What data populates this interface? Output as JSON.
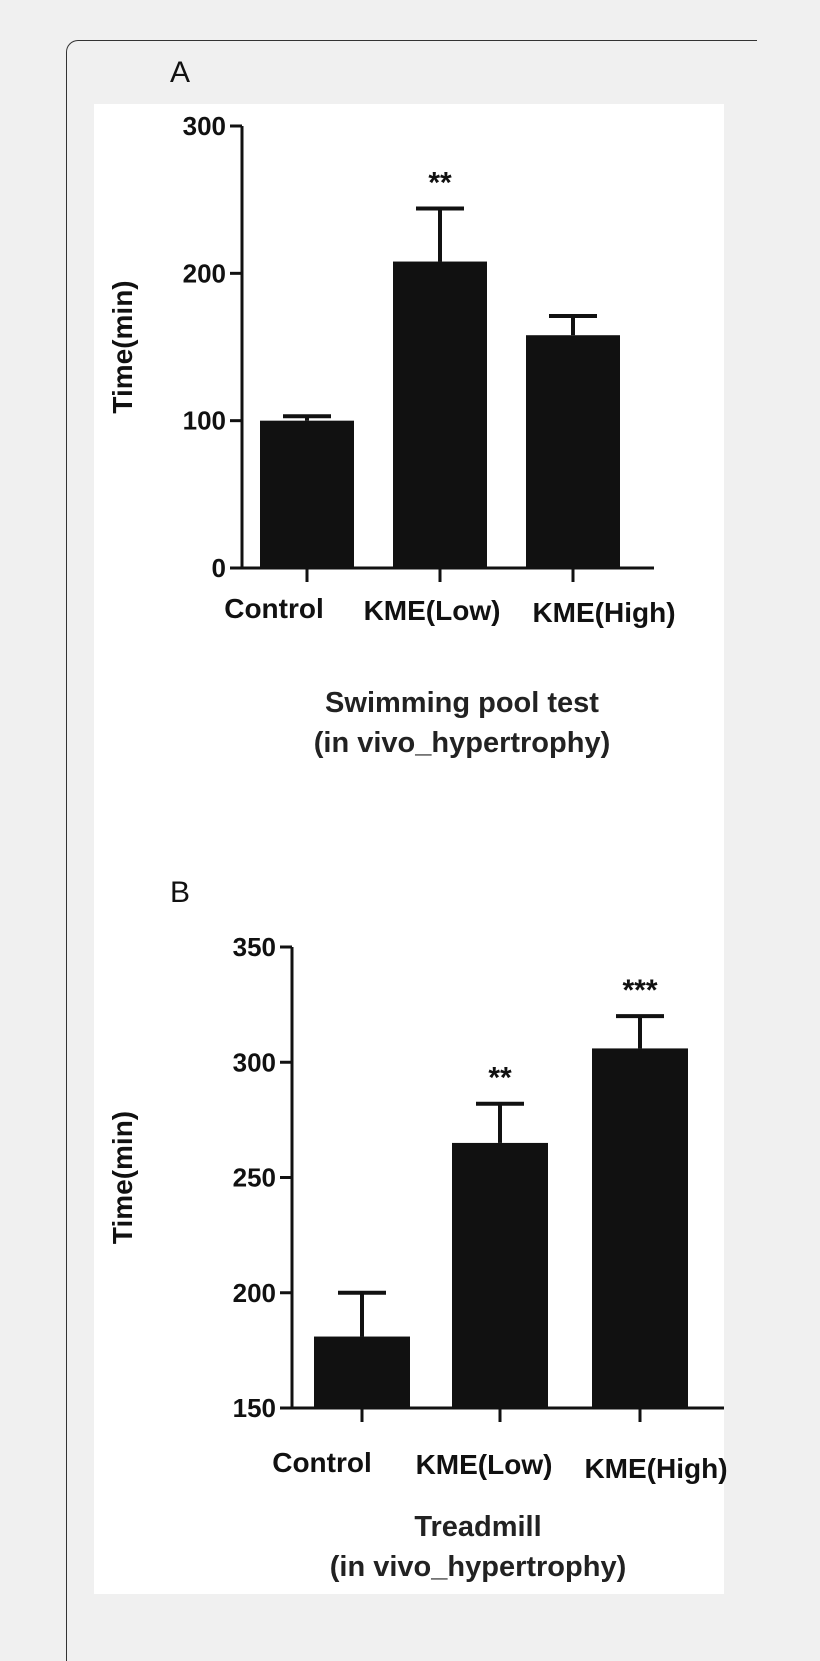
{
  "chart_data": [
    {
      "panel": "A",
      "type": "bar",
      "categories": [
        "Control",
        "KME(Low)",
        "KME(High)"
      ],
      "values": [
        100,
        208,
        158
      ],
      "errors": [
        3,
        36,
        13
      ],
      "annotations": [
        "",
        "**",
        ""
      ],
      "ylabel": "Time(min)",
      "ylim": [
        0,
        300
      ],
      "yticks": [
        0,
        100,
        200,
        300
      ],
      "caption": [
        "Swimming pool test",
        "(in vivo_hypertrophy)"
      ],
      "bar_color": "#111111"
    },
    {
      "panel": "B",
      "type": "bar",
      "categories": [
        "Control",
        "KME(Low)",
        "KME(High)"
      ],
      "values": [
        181,
        265,
        306
      ],
      "errors": [
        19,
        17,
        14
      ],
      "annotations": [
        "",
        "**",
        "***"
      ],
      "ylabel": "Time(min)",
      "ylim": [
        150,
        350
      ],
      "yticks": [
        150,
        200,
        250,
        300,
        350
      ],
      "caption": [
        "Treadmill",
        "(in vivo_hypertrophy)"
      ],
      "bar_color": "#111111"
    }
  ]
}
